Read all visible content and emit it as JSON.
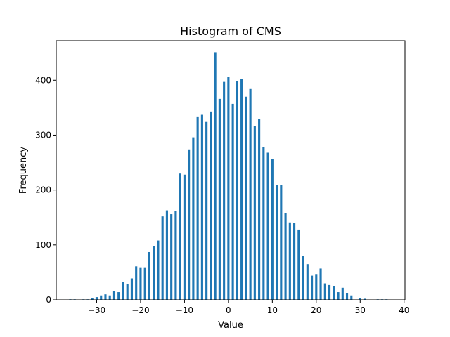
{
  "chart_data": {
    "type": "bar",
    "title": "Histogram of CMS",
    "xlabel": "Value",
    "ylabel": "Frequency",
    "xlim": [
      -39.2,
      40.2
    ],
    "ylim": [
      0,
      472
    ],
    "grid": false,
    "bar_color": "#1f77b4",
    "x_ticks": [
      -30,
      -20,
      -10,
      0,
      10,
      20,
      30,
      40
    ],
    "x_tick_labels": [
      "−30",
      "−20",
      "−10",
      "0",
      "10",
      "20",
      "30",
      "40"
    ],
    "y_ticks": [
      0,
      100,
      200,
      300,
      400
    ],
    "y_tick_labels": [
      "0",
      "100",
      "200",
      "300",
      "400"
    ],
    "bar_width": 0.5,
    "x": [
      -36,
      -35,
      -33,
      -32,
      -31,
      -30,
      -29,
      -28,
      -27,
      -26,
      -25,
      -24,
      -23,
      -22,
      -21,
      -20,
      -19,
      -18,
      -17,
      -16,
      -15,
      -14,
      -13,
      -12,
      -11,
      -10,
      -9,
      -8,
      -7,
      -6,
      -5,
      -4,
      -3,
      -2,
      -1,
      0,
      1,
      2,
      3,
      4,
      5,
      6,
      7,
      8,
      9,
      10,
      11,
      12,
      13,
      14,
      15,
      16,
      17,
      18,
      19,
      20,
      21,
      22,
      23,
      24,
      25,
      26,
      27,
      28,
      30,
      31,
      34,
      35,
      36
    ],
    "values": [
      1,
      1,
      1,
      1,
      3,
      5,
      8,
      10,
      8,
      16,
      14,
      33,
      29,
      39,
      61,
      58,
      58,
      87,
      98,
      108,
      152,
      163,
      156,
      162,
      230,
      228,
      274,
      296,
      334,
      337,
      324,
      343,
      451,
      366,
      397,
      406,
      357,
      399,
      402,
      370,
      384,
      316,
      330,
      278,
      268,
      256,
      209,
      209,
      158,
      141,
      140,
      128,
      80,
      65,
      44,
      47,
      57,
      30,
      27,
      25,
      14,
      22,
      12,
      8,
      3,
      2,
      1,
      1,
      1
    ]
  }
}
